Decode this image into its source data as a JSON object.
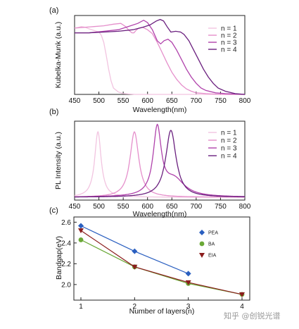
{
  "panel_labels": [
    "(a)",
    "(b)",
    "(c)"
  ],
  "watermark": "知乎 @创锐光谱",
  "chart_data": [
    {
      "type": "line",
      "panel": "(a)",
      "title": "",
      "xlabel": "Wavelength(nm)",
      "ylabel": "Kubelka-Munk (a.u.)",
      "xlim": [
        450,
        800
      ],
      "xticks": [
        "450",
        "500",
        "550",
        "600",
        "650",
        "700",
        "750",
        "800"
      ],
      "grid": false,
      "legend_position": "top-right",
      "series": [
        {
          "name": "n = 1",
          "color": "#f2c4e0",
          "x": [
            450,
            458,
            464,
            472,
            480,
            490,
            500,
            505,
            510,
            515,
            520,
            525,
            530,
            540,
            550,
            575,
            600,
            650,
            700,
            750,
            800
          ],
          "y": [
            0.84,
            0.85,
            0.86,
            0.85,
            0.83,
            0.81,
            0.79,
            0.75,
            0.66,
            0.5,
            0.32,
            0.17,
            0.08,
            0.03,
            0.01,
            0.0,
            0.0,
            0.0,
            0.0,
            0.0,
            0.0
          ]
        },
        {
          "name": "n = 2",
          "color": "#e58fcb",
          "x": [
            450,
            470,
            490,
            510,
            530,
            545,
            555,
            562,
            568,
            572,
            576,
            582,
            590,
            600,
            610,
            620,
            630,
            640,
            650,
            660,
            670,
            680,
            690,
            700,
            720,
            750,
            800
          ],
          "y": [
            0.84,
            0.85,
            0.86,
            0.87,
            0.89,
            0.9,
            0.86,
            0.81,
            0.78,
            0.78,
            0.81,
            0.84,
            0.85,
            0.82,
            0.77,
            0.66,
            0.53,
            0.4,
            0.28,
            0.19,
            0.12,
            0.07,
            0.04,
            0.02,
            0.01,
            0.0,
            0.0
          ]
        },
        {
          "name": "n = 3",
          "color": "#b042ab",
          "x": [
            450,
            480,
            510,
            540,
            560,
            580,
            592,
            600,
            610,
            620,
            627,
            634,
            642,
            650,
            660,
            670,
            680,
            690,
            700,
            710,
            720,
            740,
            760,
            800
          ],
          "y": [
            0.78,
            0.78,
            0.8,
            0.82,
            0.86,
            0.9,
            0.94,
            0.91,
            0.82,
            0.68,
            0.64,
            0.68,
            0.7,
            0.66,
            0.56,
            0.44,
            0.32,
            0.22,
            0.14,
            0.08,
            0.05,
            0.02,
            0.01,
            0.0
          ]
        },
        {
          "name": "n = 4",
          "color": "#6a1f7e",
          "x": [
            450,
            480,
            510,
            540,
            570,
            590,
            605,
            618,
            626,
            633,
            640,
            648,
            658,
            668,
            675,
            685,
            695,
            705,
            715,
            725,
            735,
            745,
            760,
            780,
            800
          ],
          "y": [
            0.78,
            0.78,
            0.79,
            0.8,
            0.82,
            0.85,
            0.88,
            0.93,
            0.95,
            0.93,
            0.86,
            0.79,
            0.8,
            0.79,
            0.76,
            0.68,
            0.56,
            0.44,
            0.32,
            0.22,
            0.14,
            0.08,
            0.04,
            0.01,
            0.0
          ]
        }
      ]
    },
    {
      "type": "line",
      "panel": "(b)",
      "title": "",
      "xlabel": "Wavelength(nm)",
      "ylabel": "PL Intensity (a.u.)",
      "xlim": [
        450,
        800
      ],
      "xticks": [
        "450",
        "500",
        "550",
        "600",
        "650",
        "700",
        "750",
        "800"
      ],
      "grid": false,
      "legend_position": "top-right",
      "series": [
        {
          "name": "n = 1",
          "color": "#f2c4e0",
          "peaks": [
            {
              "center": 498,
              "width": 8,
              "amp": 0.86
            }
          ]
        },
        {
          "name": "n = 2",
          "color": "#e58fcb",
          "peaks": [
            {
              "center": 573,
              "width": 11,
              "amp": 0.86
            }
          ]
        },
        {
          "name": "n = 3",
          "color": "#b042ab",
          "peaks": [
            {
              "center": 620,
              "width": 10,
              "amp": 0.88
            },
            {
              "center": 655,
              "width": 26,
              "amp": 0.22
            }
          ]
        },
        {
          "name": "n = 4",
          "color": "#6a1f7e",
          "peaks": [
            {
              "center": 648,
              "width": 13,
              "amp": 0.88
            }
          ]
        }
      ]
    },
    {
      "type": "line",
      "panel": "(c)",
      "title": "",
      "xlabel": "Number of layers(n)",
      "ylabel": "Bandgap(eV)",
      "xlim": [
        1,
        4
      ],
      "ylim": [
        1.85,
        2.65
      ],
      "xticks": [
        "1",
        "2",
        "3",
        "4"
      ],
      "yticks": [
        "2.0",
        "2.2",
        "2.4",
        "2.6"
      ],
      "grid": false,
      "legend_position": "top-right",
      "series": [
        {
          "name": "PEA",
          "color": "#2a5fc0",
          "marker": "diamond",
          "x": [
            1,
            2,
            3
          ],
          "y": [
            2.565,
            2.32,
            2.105
          ]
        },
        {
          "name": "BA",
          "color": "#6aa836",
          "marker": "circle",
          "x": [
            1,
            2,
            3,
            4
          ],
          "y": [
            2.43,
            2.17,
            2.01,
            1.905
          ]
        },
        {
          "name": "EIA",
          "color": "#8b1d1d",
          "marker": "triangle-down",
          "x": [
            1,
            2,
            3,
            4
          ],
          "y": [
            2.52,
            2.17,
            2.02,
            1.905
          ]
        }
      ]
    }
  ]
}
